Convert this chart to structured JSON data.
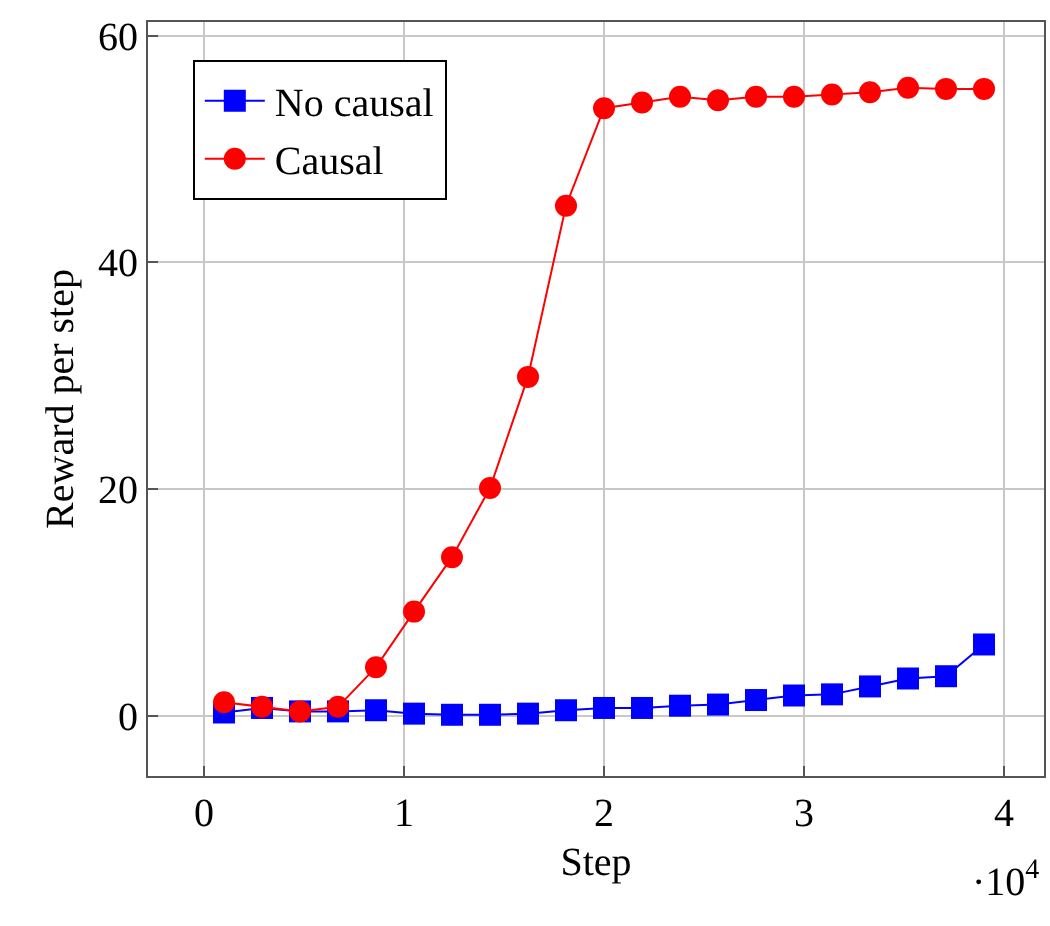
{
  "chart_data": {
    "type": "line",
    "xlabel": "Step",
    "ylabel": "Reward per step",
    "x": [
      0.1,
      0.29,
      0.48,
      0.67,
      0.86,
      1.05,
      1.24,
      1.43,
      1.62,
      1.81,
      2.0,
      2.19,
      2.38,
      2.57,
      2.76,
      2.95,
      3.14,
      3.33,
      3.52,
      3.71,
      3.9
    ],
    "series": [
      {
        "name": "No causal",
        "color": "#0000ff",
        "marker": "square",
        "values": [
          0.3,
          0.7,
          0.4,
          0.4,
          0.5,
          0.2,
          0.1,
          0.1,
          0.2,
          0.5,
          0.7,
          0.7,
          0.9,
          1.0,
          1.4,
          1.8,
          1.9,
          2.6,
          3.3,
          3.5,
          6.3
        ]
      },
      {
        "name": "Causal",
        "color": "#ff0000",
        "marker": "circle",
        "values": [
          1.2,
          0.8,
          0.4,
          0.8,
          4.3,
          9.2,
          14,
          20.1,
          29.9,
          45,
          53.6,
          54.1,
          54.6,
          54.3,
          54.6,
          54.6,
          54.8,
          55,
          55.4,
          55.3,
          55.3
        ]
      }
    ],
    "xlim": [
      -0.28,
      4.2
    ],
    "xticks": [
      0,
      1,
      2,
      3,
      4
    ],
    "ylim": [
      -5.3,
      61.2
    ],
    "yticks": [
      0,
      20,
      40,
      60
    ],
    "grid": true,
    "legend": "top left",
    "line_style": "solid",
    "annotations": [
      "·10$^{4}$"
    ]
  }
}
